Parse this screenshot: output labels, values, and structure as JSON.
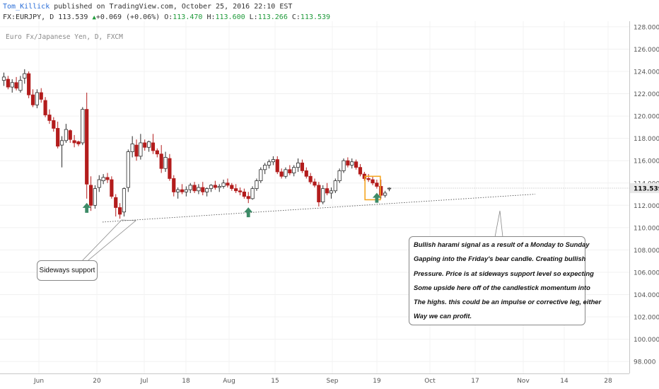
{
  "header": {
    "author": "Tom_Killick",
    "published": " published on TradingView.com, October 25, 2016 22:10 EST",
    "symbol": "FX:EURJPY, D ",
    "last": "113.539",
    "change": "+0.069 (+0.06%)",
    "o_label": " O:",
    "o_value": "113.470",
    "h_label": " H:",
    "h_value": "113.600",
    "l_label": " L:",
    "l_value": "113.266",
    "c_label": " C:",
    "c_value": "113.539"
  },
  "chart_subtitle": "Euro Fx/Japanese Yen, D, FXCM",
  "annotations": {
    "support_label": "Sideways support",
    "harami_lines": [
      "Bullish harami signal as a result of a Monday to Sunday",
      "Gapping into the Friday's bear candle. Creating bullish",
      "Pressure. Price is at sideways support level so expecting",
      "Some upside here off of the candlestick momentum into",
      "The highs. this could be an impulse or corrective leg, either",
      "Way we can profit."
    ]
  },
  "colors": {
    "bull_body": "#ffffff",
    "bull_outline": "#2b2b2b",
    "bear_body": "#b31c1c",
    "arrow": "#3d8b67",
    "highlight_box": "#f5a623",
    "price_badge": "#e8e8e8"
  },
  "chart_data": {
    "type": "candlestick",
    "title": "",
    "xlabel": "",
    "ylabel": "",
    "ylim": [
      97,
      128
    ],
    "ytick_values": [
      98,
      100,
      102,
      104,
      106,
      108,
      110,
      112,
      114,
      116,
      118,
      120,
      122,
      124,
      126,
      128
    ],
    "ytick_labels": [
      "98.000",
      "100.000",
      "102.000",
      "104.000",
      "106.000",
      "108.000",
      "110.000",
      "112.000",
      "114.000",
      "116.000",
      "118.000",
      "120.000",
      "122.000",
      "124.000",
      "126.000",
      "128.000"
    ],
    "x_labels": [
      "Jun",
      "20",
      "Jul",
      "18",
      "Aug",
      "15",
      "Sep",
      "19",
      "Oct",
      "17",
      "Nov",
      "14",
      "28"
    ],
    "last_price_label": "113.539",
    "last_price": 113.539,
    "grid": true,
    "support_line": {
      "from": [
        0,
        110.5
      ],
      "to": [
        104,
        113.0
      ]
    },
    "signal_arrows_at_index": [
      20,
      59,
      90
    ],
    "highlight_index": [
      88,
      90
    ],
    "ohlc": [
      [
        123.2,
        123.9,
        122.7,
        123.5
      ],
      [
        123.3,
        123.6,
        122.4,
        122.6
      ],
      [
        122.6,
        123.3,
        122.1,
        123.0
      ],
      [
        123.0,
        123.5,
        122.3,
        122.5
      ],
      [
        122.3,
        123.6,
        122.1,
        123.2
      ],
      [
        123.4,
        124.2,
        122.9,
        123.8
      ],
      [
        123.8,
        124.0,
        121.6,
        121.9
      ],
      [
        121.9,
        122.4,
        120.8,
        121.0
      ],
      [
        121.0,
        122.4,
        120.7,
        122.1
      ],
      [
        122.1,
        122.5,
        121.2,
        121.5
      ],
      [
        121.4,
        121.7,
        119.9,
        120.1
      ],
      [
        120.1,
        120.6,
        119.3,
        119.6
      ],
      [
        119.6,
        119.9,
        118.6,
        118.9
      ],
      [
        118.9,
        119.5,
        117.1,
        117.3
      ],
      [
        117.4,
        118.2,
        115.4,
        117.8
      ],
      [
        117.8,
        119.3,
        117.6,
        118.8
      ],
      [
        118.7,
        118.8,
        117.6,
        117.9
      ],
      [
        117.8,
        118.3,
        117.2,
        117.6
      ],
      [
        117.7,
        117.8,
        117.3,
        117.5
      ],
      [
        117.6,
        120.8,
        117.4,
        120.6
      ],
      [
        120.6,
        122.1,
        112.6,
        113.9
      ],
      [
        113.8,
        114.6,
        111.5,
        112.0
      ],
      [
        112.0,
        113.8,
        111.7,
        113.5
      ],
      [
        113.6,
        114.7,
        113.2,
        114.3
      ],
      [
        114.2,
        114.8,
        113.9,
        114.5
      ],
      [
        114.5,
        114.9,
        114.0,
        114.3
      ],
      [
        114.3,
        114.6,
        112.6,
        112.8
      ],
      [
        112.7,
        113.0,
        111.0,
        111.8
      ],
      [
        111.8,
        112.2,
        110.8,
        111.2
      ],
      [
        111.4,
        113.6,
        111.0,
        113.5
      ],
      [
        113.6,
        117.0,
        113.2,
        116.8
      ],
      [
        116.8,
        118.2,
        116.3,
        117.5
      ],
      [
        117.4,
        117.9,
        116.0,
        116.4
      ],
      [
        116.4,
        118.4,
        116.1,
        117.6
      ],
      [
        117.6,
        117.9,
        116.9,
        117.2
      ],
      [
        117.2,
        117.8,
        116.8,
        117.7
      ],
      [
        117.6,
        118.4,
        116.6,
        116.9
      ],
      [
        116.9,
        117.1,
        116.3,
        116.6
      ],
      [
        116.6,
        117.4,
        114.9,
        115.3
      ],
      [
        115.3,
        116.8,
        115.0,
        116.3
      ],
      [
        116.2,
        116.6,
        114.2,
        114.4
      ],
      [
        114.4,
        114.7,
        112.8,
        113.2
      ],
      [
        113.2,
        113.6,
        112.6,
        113.4
      ],
      [
        113.4,
        113.9,
        113.0,
        113.2
      ],
      [
        113.2,
        113.7,
        112.8,
        113.4
      ],
      [
        113.4,
        114.0,
        113.1,
        113.8
      ],
      [
        113.8,
        114.1,
        113.1,
        113.3
      ],
      [
        113.3,
        113.9,
        113.0,
        113.6
      ],
      [
        113.6,
        114.1,
        112.9,
        113.2
      ],
      [
        113.2,
        113.6,
        112.8,
        113.5
      ],
      [
        113.5,
        113.9,
        113.2,
        113.8
      ],
      [
        113.8,
        114.2,
        113.4,
        113.6
      ],
      [
        113.6,
        113.9,
        113.2,
        113.7
      ],
      [
        113.7,
        114.3,
        113.5,
        114.0
      ],
      [
        114.0,
        114.4,
        113.6,
        113.8
      ],
      [
        113.8,
        114.0,
        113.3,
        113.5
      ],
      [
        113.5,
        113.9,
        113.1,
        113.3
      ],
      [
        113.3,
        113.6,
        112.9,
        113.2
      ],
      [
        113.2,
        113.5,
        112.6,
        112.8
      ],
      [
        112.8,
        113.2,
        112.2,
        112.6
      ],
      [
        112.6,
        113.7,
        112.5,
        113.5
      ],
      [
        113.5,
        114.4,
        113.3,
        114.2
      ],
      [
        114.2,
        115.4,
        114.0,
        115.2
      ],
      [
        115.2,
        115.8,
        114.8,
        115.6
      ],
      [
        115.6,
        116.1,
        115.3,
        115.9
      ],
      [
        115.9,
        116.4,
        115.6,
        116.1
      ],
      [
        116.1,
        116.4,
        114.8,
        115.0
      ],
      [
        115.0,
        115.3,
        114.4,
        114.6
      ],
      [
        114.6,
        115.4,
        114.4,
        115.2
      ],
      [
        115.2,
        115.6,
        114.7,
        114.9
      ],
      [
        114.9,
        115.6,
        114.6,
        115.4
      ],
      [
        115.4,
        116.2,
        115.0,
        115.8
      ],
      [
        115.8,
        116.1,
        114.9,
        115.1
      ],
      [
        115.1,
        115.4,
        114.4,
        114.6
      ],
      [
        114.6,
        114.9,
        113.9,
        114.1
      ],
      [
        114.1,
        114.4,
        113.6,
        113.8
      ],
      [
        113.8,
        114.1,
        111.9,
        112.3
      ],
      [
        112.3,
        113.8,
        112.1,
        113.5
      ],
      [
        113.5,
        114.0,
        112.9,
        113.1
      ],
      [
        113.1,
        113.6,
        112.6,
        113.3
      ],
      [
        113.3,
        114.4,
        113.1,
        114.2
      ],
      [
        114.2,
        115.3,
        114.0,
        115.1
      ],
      [
        115.1,
        116.2,
        114.9,
        116.0
      ],
      [
        116.0,
        116.3,
        115.4,
        115.6
      ],
      [
        115.6,
        116.2,
        115.3,
        115.9
      ],
      [
        115.9,
        116.1,
        115.2,
        115.4
      ],
      [
        115.4,
        115.7,
        114.6,
        114.8
      ],
      [
        114.8,
        115.0,
        114.2,
        114.4
      ],
      [
        114.4,
        114.8,
        114.1,
        114.3
      ],
      [
        114.3,
        114.6,
        113.8,
        114.0
      ],
      [
        114.0,
        114.3,
        113.5,
        113.7
      ],
      [
        113.7,
        114.3,
        112.6,
        112.9
      ],
      [
        112.9,
        113.3,
        112.7,
        113.1
      ],
      [
        113.47,
        113.6,
        113.266,
        113.539
      ]
    ]
  }
}
